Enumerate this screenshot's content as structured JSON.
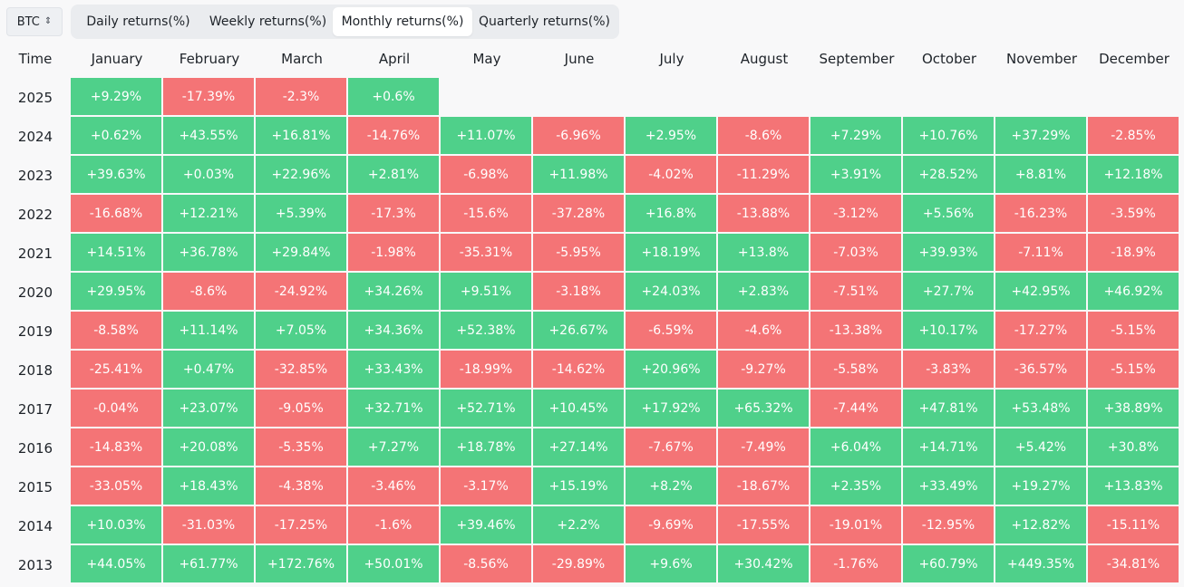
{
  "asset": {
    "selected": "BTC",
    "icon": "chevron-up-down-icon"
  },
  "tabs": [
    {
      "label": "Daily returns(%)",
      "active": false
    },
    {
      "label": "Weekly returns(%)",
      "active": false
    },
    {
      "label": "Monthly returns(%)",
      "active": true
    },
    {
      "label": "Quarterly returns(%)",
      "active": false
    }
  ],
  "table": {
    "time_header": "Time",
    "months": [
      "January",
      "February",
      "March",
      "April",
      "May",
      "June",
      "July",
      "August",
      "September",
      "October",
      "November",
      "December"
    ],
    "colors": {
      "positive": "#4fd08a",
      "negative": "#f47476"
    },
    "rows": [
      {
        "year": "2025",
        "values": [
          "+9.29%",
          "-17.39%",
          "-2.3%",
          "+0.6%",
          "",
          "",
          "",
          "",
          "",
          "",
          "",
          ""
        ]
      },
      {
        "year": "2024",
        "values": [
          "+0.62%",
          "+43.55%",
          "+16.81%",
          "-14.76%",
          "+11.07%",
          "-6.96%",
          "+2.95%",
          "-8.6%",
          "+7.29%",
          "+10.76%",
          "+37.29%",
          "-2.85%"
        ]
      },
      {
        "year": "2023",
        "values": [
          "+39.63%",
          "+0.03%",
          "+22.96%",
          "+2.81%",
          "-6.98%",
          "+11.98%",
          "-4.02%",
          "-11.29%",
          "+3.91%",
          "+28.52%",
          "+8.81%",
          "+12.18%"
        ]
      },
      {
        "year": "2022",
        "values": [
          "-16.68%",
          "+12.21%",
          "+5.39%",
          "-17.3%",
          "-15.6%",
          "-37.28%",
          "+16.8%",
          "-13.88%",
          "-3.12%",
          "+5.56%",
          "-16.23%",
          "-3.59%"
        ]
      },
      {
        "year": "2021",
        "values": [
          "+14.51%",
          "+36.78%",
          "+29.84%",
          "-1.98%",
          "-35.31%",
          "-5.95%",
          "+18.19%",
          "+13.8%",
          "-7.03%",
          "+39.93%",
          "-7.11%",
          "-18.9%"
        ]
      },
      {
        "year": "2020",
        "values": [
          "+29.95%",
          "-8.6%",
          "-24.92%",
          "+34.26%",
          "+9.51%",
          "-3.18%",
          "+24.03%",
          "+2.83%",
          "-7.51%",
          "+27.7%",
          "+42.95%",
          "+46.92%"
        ]
      },
      {
        "year": "2019",
        "values": [
          "-8.58%",
          "+11.14%",
          "+7.05%",
          "+34.36%",
          "+52.38%",
          "+26.67%",
          "-6.59%",
          "-4.6%",
          "-13.38%",
          "+10.17%",
          "-17.27%",
          "-5.15%"
        ]
      },
      {
        "year": "2018",
        "values": [
          "-25.41%",
          "+0.47%",
          "-32.85%",
          "+33.43%",
          "-18.99%",
          "-14.62%",
          "+20.96%",
          "-9.27%",
          "-5.58%",
          "-3.83%",
          "-36.57%",
          "-5.15%"
        ]
      },
      {
        "year": "2017",
        "values": [
          "-0.04%",
          "+23.07%",
          "-9.05%",
          "+32.71%",
          "+52.71%",
          "+10.45%",
          "+17.92%",
          "+65.32%",
          "-7.44%",
          "+47.81%",
          "+53.48%",
          "+38.89%"
        ]
      },
      {
        "year": "2016",
        "values": [
          "-14.83%",
          "+20.08%",
          "-5.35%",
          "+7.27%",
          "+18.78%",
          "+27.14%",
          "-7.67%",
          "-7.49%",
          "+6.04%",
          "+14.71%",
          "+5.42%",
          "+30.8%"
        ]
      },
      {
        "year": "2015",
        "values": [
          "-33.05%",
          "+18.43%",
          "-4.38%",
          "-3.46%",
          "-3.17%",
          "+15.19%",
          "+8.2%",
          "-18.67%",
          "+2.35%",
          "+33.49%",
          "+19.27%",
          "+13.83%"
        ]
      },
      {
        "year": "2014",
        "values": [
          "+10.03%",
          "-31.03%",
          "-17.25%",
          "-1.6%",
          "+39.46%",
          "+2.2%",
          "-9.69%",
          "-17.55%",
          "-19.01%",
          "-12.95%",
          "+12.82%",
          "-15.11%"
        ]
      },
      {
        "year": "2013",
        "values": [
          "+44.05%",
          "+61.77%",
          "+172.76%",
          "+50.01%",
          "-8.56%",
          "-29.89%",
          "+9.6%",
          "+30.42%",
          "-1.76%",
          "+60.79%",
          "+449.35%",
          "-34.81%"
        ]
      }
    ]
  }
}
